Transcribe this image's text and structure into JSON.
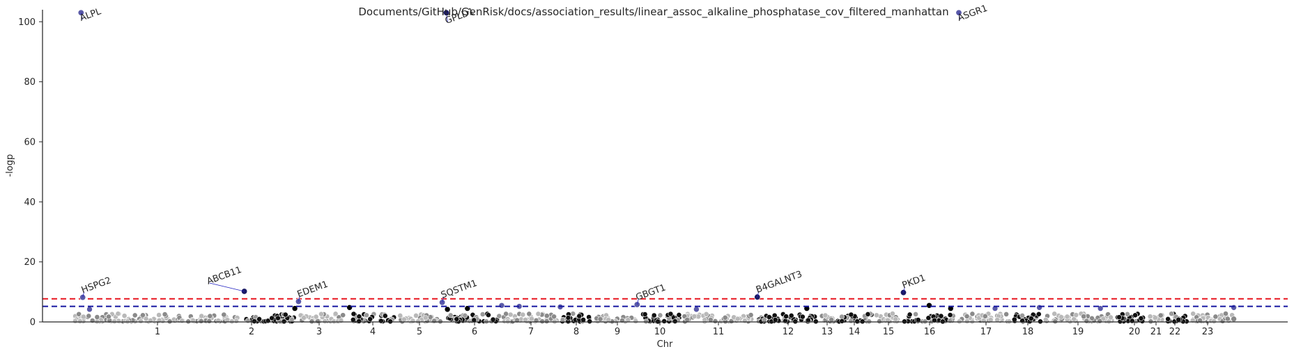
{
  "chart_data": {
    "type": "scatter",
    "title": "Documents/GitHub/GenRisk/docs/association_results/linear_assoc_alkaline_phosphatase_cov_filtered_manhattan",
    "xlabel": "Chr",
    "ylabel": "-logp",
    "ylim": [
      0,
      104
    ],
    "yticks": [
      0,
      20,
      40,
      60,
      80,
      100
    ],
    "grid": false,
    "colors": {
      "dark_points": "#000000",
      "light_points": "#888888",
      "hit_points": "#5a5aa8",
      "hit_point_dark": "#1a1a66",
      "line_red": "#e8141e",
      "line_blue": "#1414a0",
      "axis": "#262626"
    },
    "chromosomes": [
      "1",
      "2",
      "3",
      "4",
      "5",
      "6",
      "7",
      "8",
      "9",
      "10",
      "11",
      "12",
      "13",
      "14",
      "15",
      "16",
      "17",
      "18",
      "19",
      "20",
      "21",
      "22",
      "23"
    ],
    "threshold_lines": [
      {
        "y": 7.7,
        "color": "#e8141e",
        "style": "dashed"
      },
      {
        "y": 5.2,
        "color": "#1414a0",
        "style": "dashed"
      }
    ],
    "labeled_hits": [
      {
        "gene": "ALPL",
        "chr": "1",
        "pos": 0.05,
        "y": 103,
        "dx": 0,
        "dy": 12,
        "angle": -20
      },
      {
        "gene": "HSPG2",
        "chr": "1",
        "pos": 0.06,
        "y": 8.2,
        "dx": 0,
        "dy": -6,
        "angle": -20
      },
      {
        "gene": "ABCB11",
        "chr": "2",
        "pos": 0.02,
        "y": 10.2,
        "dx": -52,
        "dy": -10,
        "angle": -20
      },
      {
        "gene": "EDEM1",
        "chr": "3",
        "pos": 0.02,
        "y": 6.8,
        "dx": 0,
        "dy": -6,
        "angle": -20
      },
      {
        "gene": "GPLD1",
        "chr": "6",
        "pos": 0.03,
        "y": 103,
        "dx": 0,
        "dy": 16,
        "angle": -20
      },
      {
        "gene": "SQSTM1",
        "chr": "5",
        "pos": 0.95,
        "y": 6.5,
        "dx": 0,
        "dy": -6,
        "angle": -20
      },
      {
        "gene": "GBGT1",
        "chr": "9",
        "pos": 0.96,
        "y": 5.8,
        "dx": 0,
        "dy": -6,
        "angle": -20
      },
      {
        "gene": "B4GALNT3",
        "chr": "12",
        "pos": 0.02,
        "y": 8.3,
        "dx": 0,
        "dy": -6,
        "angle": -20
      },
      {
        "gene": "PKD1",
        "chr": "16",
        "pos": 0.02,
        "y": 9.8,
        "dx": 0,
        "dy": -6,
        "angle": -20
      },
      {
        "gene": "ASGR1",
        "chr": "17",
        "pos": 0.05,
        "y": 103,
        "dx": 0,
        "dy": 12,
        "angle": -20
      }
    ],
    "extra_points": [
      {
        "chr": "1",
        "pos": 0.1,
        "y": 4.2,
        "shade": "hit"
      },
      {
        "chr": "2",
        "pos": 0.95,
        "y": 4.5,
        "shade": "dark"
      },
      {
        "chr": "4",
        "pos": 0.05,
        "y": 4.8,
        "shade": "dark"
      },
      {
        "chr": "6",
        "pos": 0.4,
        "y": 4.5,
        "shade": "dark"
      },
      {
        "chr": "6",
        "pos": 0.05,
        "y": 4.2,
        "shade": "dark"
      },
      {
        "chr": "7",
        "pos": 0.3,
        "y": 5.2,
        "shade": "hit"
      },
      {
        "chr": "7",
        "pos": 0.0,
        "y": 5.5,
        "shade": "hit"
      },
      {
        "chr": "8",
        "pos": 0.0,
        "y": 5.0,
        "shade": "hit"
      },
      {
        "chr": "11",
        "pos": 0.2,
        "y": 4.2,
        "shade": "hit"
      },
      {
        "chr": "12",
        "pos": 0.8,
        "y": 4.5,
        "shade": "dark"
      },
      {
        "chr": "16",
        "pos": 0.5,
        "y": 5.5,
        "shade": "dark"
      },
      {
        "chr": "16",
        "pos": 0.9,
        "y": 4.5,
        "shade": "dark"
      },
      {
        "chr": "17",
        "pos": 0.7,
        "y": 4.5,
        "shade": "hit"
      },
      {
        "chr": "18",
        "pos": 0.9,
        "y": 4.8,
        "shade": "hit"
      },
      {
        "chr": "19",
        "pos": 0.8,
        "y": 4.5,
        "shade": "hit"
      },
      {
        "chr": "23",
        "pos": 0.95,
        "y": 4.8,
        "shade": "hit"
      },
      {
        "chr": "23",
        "pos": 0.95,
        "y": 1.0,
        "shade": "light"
      }
    ]
  }
}
